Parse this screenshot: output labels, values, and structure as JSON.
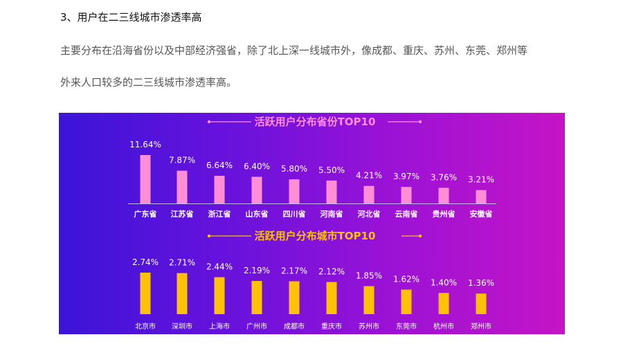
{
  "article": {
    "heading": "3、用户在二三线城市渗透率高",
    "paragraph_line1": "主要分布在沿海省份以及中部经济强省，除了北上深一线城市外，像成都、重庆、苏州、东莞、郑州等",
    "paragraph_line2": "外来人口较多的二三线城市渗透率高。"
  },
  "colors": {
    "province_bar": "#ff8ed6",
    "province_title": "#ff8ed6",
    "city_bar": "#ffc107",
    "city_title": "#ffc107",
    "bg_start": "#3b14d8",
    "bg_end": "#c514c6"
  },
  "chart_data": [
    {
      "type": "bar",
      "title": "活跃用户分布省份TOP10",
      "categories": [
        "广东省",
        "江苏省",
        "浙江省",
        "山东省",
        "四川省",
        "河南省",
        "河北省",
        "云南省",
        "贵州省",
        "安徽省"
      ],
      "values": [
        11.64,
        7.87,
        6.64,
        6.4,
        5.8,
        5.5,
        4.21,
        3.97,
        3.76,
        3.21
      ],
      "value_labels": [
        "11.64%",
        "7.87%",
        "6.64%",
        "6.40%",
        "5.80%",
        "5.50%",
        "4.21%",
        "3.97%",
        "3.76%",
        "3.21%"
      ],
      "unit": "%",
      "ylim": [
        0,
        11.64
      ],
      "grid": false,
      "legend": "none"
    },
    {
      "type": "bar",
      "title": "活跃用户分布城市TOP10",
      "categories": [
        "北京市",
        "深圳市",
        "上海市",
        "广州市",
        "成都市",
        "重庆市",
        "苏州市",
        "东莞市",
        "杭州市",
        "郑州市"
      ],
      "values": [
        2.74,
        2.71,
        2.44,
        2.19,
        2.17,
        2.12,
        1.85,
        1.62,
        1.4,
        1.36
      ],
      "value_labels": [
        "2.74%",
        "2.71%",
        "2.44%",
        "2.19%",
        "2.17%",
        "2.12%",
        "1.85%",
        "1.62%",
        "1.40%",
        "1.36%"
      ],
      "unit": "%",
      "ylim": [
        0,
        2.74
      ],
      "grid": false,
      "legend": "none"
    }
  ]
}
